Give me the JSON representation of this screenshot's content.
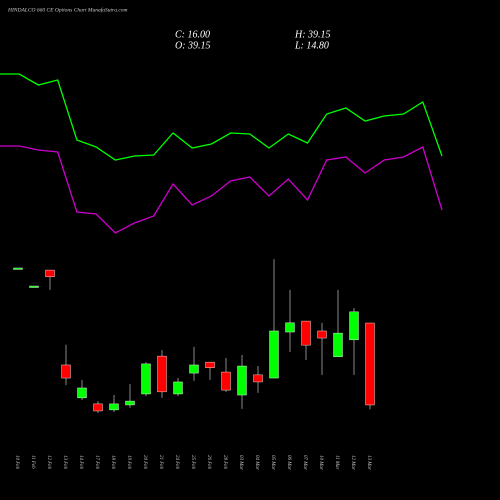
{
  "chart_data": [
    {
      "type": "line",
      "title": "HINDALCO 660 CE Options Chart MunafaSutra.com",
      "ohlc": [
        "C: 16.00",
        "O: 39.15",
        "H: 39.15",
        "L: 14.80"
      ],
      "ylim": [
        0,
        300
      ],
      "series": [
        {
          "name": "upper",
          "color": "#00ff00",
          "values": [
            226,
            226,
            215,
            220,
            160,
            153,
            140,
            144,
            145,
            167,
            152,
            156,
            167,
            166,
            152,
            166,
            157,
            186,
            192,
            179,
            184,
            186,
            198,
            144
          ]
        },
        {
          "name": "lower",
          "color": "#cc00cc",
          "values": [
            154,
            154,
            150,
            148,
            88,
            86,
            67,
            77,
            84,
            116,
            95,
            104,
            119,
            123,
            104,
            121,
            100,
            140,
            143,
            127,
            140,
            143,
            153,
            90
          ]
        }
      ]
    },
    {
      "type": "candlestick",
      "ylim": [
        0,
        60
      ],
      "up_color": "#00ff00",
      "down_color": "#ff0000",
      "categories": [
        "10 Feb",
        "11 Feb",
        "12 Feb",
        "13 Feb",
        "14 Feb",
        "17 Feb",
        "18 Feb",
        "19 Feb",
        "20 Feb",
        "21 Feb",
        "24 Feb",
        "25 Feb",
        "26 Feb",
        "28 Feb",
        "03 Mar",
        "04 Mar",
        "05 Mar",
        "06 Mar",
        "07 Mar",
        "10 Mar",
        "11 Mar",
        "12 Mar",
        "13 Mar"
      ],
      "open": [
        54.7,
        49.6,
        54.1,
        27.3,
        18.0,
        16.3,
        14.6,
        16.0,
        19.1,
        29.8,
        19.1,
        25.0,
        28.1,
        25.3,
        18.8,
        24.5,
        23.6,
        36.6,
        39.7,
        36.9,
        29.6,
        34.4,
        39.15
      ],
      "high": [
        54.7,
        49.6,
        54.1,
        33.0,
        23.1,
        17.1,
        18.8,
        21.9,
        28.1,
        31.5,
        23.6,
        32.4,
        28.1,
        29.3,
        30.1,
        27.0,
        57.2,
        48.5,
        39.7,
        39.2,
        48.5,
        43.4,
        39.15
      ],
      "low": [
        54.7,
        49.6,
        48.5,
        21.6,
        17.4,
        13.7,
        14.0,
        15.2,
        18.5,
        18.0,
        18.5,
        22.8,
        23.1,
        19.7,
        14.9,
        19.4,
        23.6,
        31.0,
        28.7,
        24.5,
        29.6,
        24.5,
        14.8
      ],
      "close": [
        54.7,
        49.6,
        52.2,
        23.6,
        20.8,
        14.3,
        16.3,
        17.1,
        27.6,
        19.7,
        22.5,
        27.3,
        26.5,
        20.2,
        27.0,
        22.5,
        36.9,
        39.2,
        32.9,
        34.9,
        36.3,
        42.3,
        16.0
      ]
    }
  ]
}
